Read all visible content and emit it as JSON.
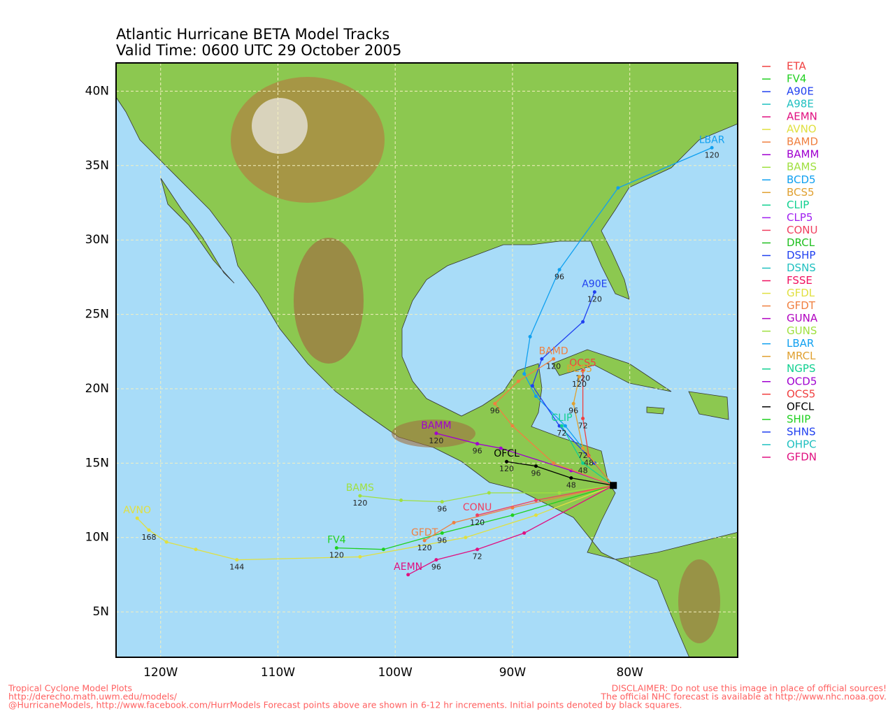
{
  "map": {
    "title": [
      "Atlantic Hurricane BETA Model Tracks",
      "Valid Time: 0600 UTC 29 October 2005"
    ],
    "lonlim": [
      -123.8,
      -70.8
    ],
    "latlim": [
      1.95,
      41.9
    ],
    "lonticks": [
      {
        "value": -120,
        "label": "120W"
      },
      {
        "value": -110,
        "label": "110W"
      },
      {
        "value": -100,
        "label": "100W"
      },
      {
        "value": -90,
        "label": "90W"
      },
      {
        "value": -80,
        "label": "80W"
      }
    ],
    "latticks": [
      {
        "value": 5,
        "label": "5N"
      },
      {
        "value": 10,
        "label": "10N"
      },
      {
        "value": 15,
        "label": "15N"
      },
      {
        "value": 20,
        "label": "20N"
      },
      {
        "value": 25,
        "label": "25N"
      },
      {
        "value": 30,
        "label": "30N"
      },
      {
        "value": 35,
        "label": "35N"
      },
      {
        "value": 40,
        "label": "40N"
      }
    ],
    "grid": true,
    "legend": [
      {
        "name": "ETA",
        "color": "#f04040"
      },
      {
        "name": "FV4",
        "color": "#20d020"
      },
      {
        "name": "A90E",
        "color": "#2040f0"
      },
      {
        "name": "A98E",
        "color": "#20c0c0"
      },
      {
        "name": "AEMN",
        "color": "#e01080"
      },
      {
        "name": "AVNO",
        "color": "#e0e040"
      },
      {
        "name": "BAMD",
        "color": "#f08040"
      },
      {
        "name": "BAMM",
        "color": "#a000d0"
      },
      {
        "name": "BAMS",
        "color": "#a0e040"
      },
      {
        "name": "BCD5",
        "color": "#10a0f0"
      },
      {
        "name": "BCS5",
        "color": "#e0a030"
      },
      {
        "name": "CLIP",
        "color": "#10d090"
      },
      {
        "name": "CLP5",
        "color": "#a020f0"
      },
      {
        "name": "CONU",
        "color": "#f04060"
      },
      {
        "name": "DRCL",
        "color": "#20c020"
      },
      {
        "name": "DSHP",
        "color": "#2040f0"
      },
      {
        "name": "DSNS",
        "color": "#20c0c0"
      },
      {
        "name": "FSSE",
        "color": "#f01060"
      },
      {
        "name": "GFDL",
        "color": "#e0e040"
      },
      {
        "name": "GFDT",
        "color": "#f08040"
      },
      {
        "name": "GUNA",
        "color": "#b000c0"
      },
      {
        "name": "GUNS",
        "color": "#a0e040"
      },
      {
        "name": "LBAR",
        "color": "#10a0f0"
      },
      {
        "name": "MRCL",
        "color": "#e0a030"
      },
      {
        "name": "NGPS",
        "color": "#10d090"
      },
      {
        "name": "OCD5",
        "color": "#a000d0"
      },
      {
        "name": "OCS5",
        "color": "#f04040"
      },
      {
        "name": "OFCL",
        "color": "#000000"
      },
      {
        "name": "SHIP",
        "color": "#20d020"
      },
      {
        "name": "SHNS",
        "color": "#2040f0"
      },
      {
        "name": "OHPC",
        "color": "#20c0c0"
      },
      {
        "name": "GFDN",
        "color": "#e01080"
      }
    ],
    "tracks": [
      {
        "label": "LBAR",
        "color": "#10a0f0",
        "lon": [
          -81.4,
          -83,
          -85.5,
          -88,
          -89,
          -88.5,
          -86,
          -81,
          -73
        ],
        "lat": [
          13.5,
          15,
          17.5,
          19.5,
          21,
          23.5,
          28,
          33.5,
          36.2
        ],
        "hours": [
          null,
          null,
          null,
          null,
          null,
          null,
          96,
          null,
          120
        ]
      },
      {
        "label": "A90E",
        "color": "#2040f0",
        "lon": [
          -81.4,
          -83,
          -86,
          -88.3,
          -87.5,
          -84,
          -83
        ],
        "lat": [
          13.5,
          15,
          17.5,
          20.2,
          22,
          24.5,
          26.5
        ],
        "hours": [
          null,
          null,
          null,
          null,
          null,
          null,
          120
        ]
      },
      {
        "label": "BAMM",
        "color": "#a000d0",
        "lon": [
          -81.4,
          -85,
          -91,
          -93,
          -96.5
        ],
        "lat": [
          13.5,
          14.5,
          16,
          16.3,
          17
        ],
        "hours": [
          null,
          null,
          null,
          96,
          120
        ]
      },
      {
        "label": "BAMS",
        "color": "#a0e040",
        "lon": [
          -81.4,
          -86,
          -92,
          -96,
          -99.5,
          -103
        ],
        "lat": [
          13.5,
          13,
          13,
          12.4,
          12.5,
          12.8
        ],
        "hours": [
          null,
          null,
          null,
          96,
          null,
          120
        ]
      },
      {
        "label": "AVNO",
        "color": "#e0e040",
        "lon": [
          -81.4,
          -88,
          -94,
          -103,
          -113.5,
          -117,
          -119.5,
          -121,
          -122
        ],
        "lat": [
          13.5,
          11.5,
          10,
          8.7,
          8.5,
          9.2,
          9.7,
          10.5,
          11.3
        ],
        "hours": [
          null,
          null,
          null,
          null,
          144,
          null,
          null,
          168,
          null
        ]
      },
      {
        "label": "FV4",
        "color": "#20d020",
        "lon": [
          -81.4,
          -90,
          -96,
          -101,
          -105
        ],
        "lat": [
          13.5,
          11.5,
          10.3,
          9.2,
          9.3
        ],
        "hours": [
          null,
          null,
          96,
          null,
          120
        ]
      },
      {
        "label": "AEMN",
        "color": "#e01080",
        "lon": [
          -81.4,
          -89,
          -93,
          -96.5,
          -98.9
        ],
        "lat": [
          13.5,
          10.3,
          9.2,
          8.5,
          7.5
        ],
        "hours": [
          null,
          null,
          72,
          96,
          null
        ]
      },
      {
        "label": "GFDT",
        "color": "#f08040",
        "lon": [
          -81.4,
          -90,
          -95,
          -97.5
        ],
        "lat": [
          13.5,
          12,
          11,
          9.8
        ],
        "hours": [
          null,
          null,
          null,
          120
        ]
      },
      {
        "label": "CONU",
        "color": "#f04060",
        "lon": [
          -81.4,
          -88,
          -93
        ],
        "lat": [
          13.5,
          12.5,
          11.5
        ],
        "hours": [
          null,
          null,
          120
        ]
      },
      {
        "label": "OFCL",
        "color": "#000000",
        "lon": [
          -81.4,
          -85,
          -88,
          -90.5
        ],
        "lat": [
          13.5,
          14,
          14.8,
          15.1
        ],
        "hours": [
          null,
          48,
          96,
          120
        ]
      },
      {
        "label": "CLIP",
        "color": "#10d090",
        "lon": [
          -81.4,
          -84,
          -85.8
        ],
        "lat": [
          13.5,
          15,
          17.5
        ],
        "hours": [
          null,
          48,
          72
        ]
      },
      {
        "label": "BAMD",
        "color": "#f08040",
        "lon": [
          -81.4,
          -86.5,
          -90,
          -91.5,
          -89.5,
          -86.5
        ],
        "lat": [
          13.5,
          15,
          17.5,
          19,
          20.5,
          22
        ],
        "hours": [
          null,
          null,
          null,
          96,
          null,
          120
        ]
      },
      {
        "label": "OCS5",
        "color": "#f04040",
        "lon": [
          -81.4,
          -83.5,
          -84,
          -84
        ],
        "lat": [
          13.5,
          15.5,
          18,
          21.2
        ],
        "hours": [
          null,
          48,
          72,
          120
        ]
      },
      {
        "label": "BCS5",
        "color": "#e0a030",
        "lon": [
          -81.4,
          -84,
          -84.8,
          -84.3
        ],
        "lat": [
          13.5,
          16,
          19,
          20.8
        ],
        "hours": [
          null,
          72,
          96,
          120
        ]
      }
    ],
    "footer_left": [
      "Tropical Cyclone Model Plots",
      "http://derecho.math.uwm.edu/models/",
      "@HurricaneModels, http://www.facebook.com/HurrModels  Forecast points above are shown in 6-12 hr increments. Initial points denoted by black squares."
    ],
    "footer_right": [
      "DISCLAIMER: Do not use this image in place of official sources!",
      "The official NHC forecast is available at http://www.nhc.noaa.gov."
    ]
  }
}
